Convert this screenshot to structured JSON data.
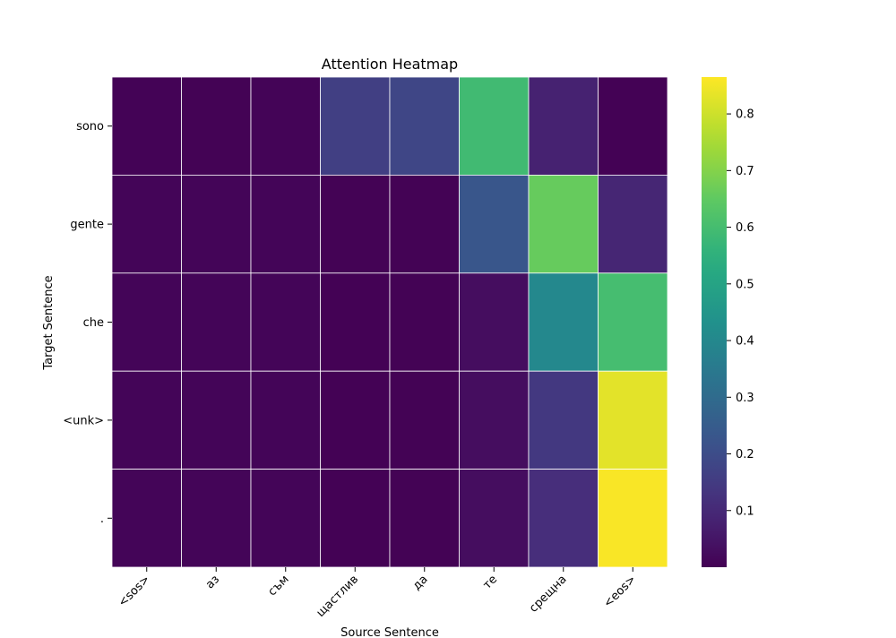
{
  "chart_data": {
    "type": "heatmap",
    "title": "Attention Heatmap",
    "xlabel": "Source Sentence",
    "ylabel": "Target Sentence",
    "x_categories": [
      "<sos>",
      "аз",
      "съм",
      "щастлив",
      "да",
      "те",
      "срещна",
      "<eos>"
    ],
    "y_categories": [
      "sono",
      "gente",
      "che",
      "<unk>",
      "."
    ],
    "values": [
      [
        0.005,
        0.004,
        0.008,
        0.16,
        0.18,
        0.59,
        0.08,
        0.003
      ],
      [
        0.01,
        0.01,
        0.01,
        0.004,
        0.004,
        0.23,
        0.66,
        0.09
      ],
      [
        0.01,
        0.01,
        0.01,
        0.003,
        0.004,
        0.03,
        0.4,
        0.6
      ],
      [
        0.01,
        0.01,
        0.01,
        0.003,
        0.004,
        0.03,
        0.14,
        0.83
      ],
      [
        0.01,
        0.01,
        0.01,
        0.003,
        0.004,
        0.03,
        0.11,
        0.86
      ]
    ],
    "colorbar": {
      "colormap": "viridis",
      "vmin": 0.0,
      "vmax": 0.865,
      "ticks": [
        0.1,
        0.2,
        0.3,
        0.4,
        0.5,
        0.6,
        0.7,
        0.8
      ]
    },
    "grid": true,
    "legend": "none"
  }
}
